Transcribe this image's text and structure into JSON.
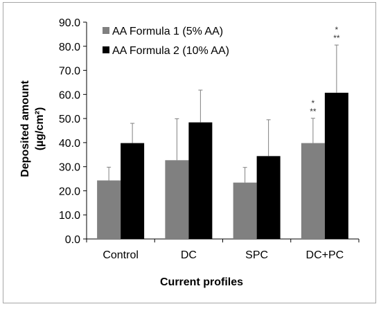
{
  "chart_data": {
    "type": "bar",
    "categories": [
      "Control",
      "DC",
      "SPC",
      "DC+PC"
    ],
    "series": [
      {
        "name": "AA Formula 1 (5% AA)",
        "color": "#808080",
        "values": [
          24.3,
          32.7,
          23.4,
          39.8
        ],
        "errors": [
          5.5,
          17.2,
          6.3,
          10.3
        ]
      },
      {
        "name": "AA Formula 2 (10% AA)",
        "color": "#000000",
        "values": [
          39.8,
          48.4,
          34.4,
          60.7
        ],
        "errors": [
          8.2,
          13.4,
          15.1,
          19.8
        ]
      }
    ],
    "annotations": [
      {
        "category": "DC+PC",
        "series": 0,
        "lines": [
          "*",
          "**"
        ]
      },
      {
        "category": "DC+PC",
        "series": 1,
        "lines": [
          "*",
          "**"
        ]
      }
    ],
    "xlabel": "Current profiles",
    "ylabel_line1": "Deposited amount",
    "ylabel_line2": "(µg/cm²)",
    "ylim": [
      0,
      90
    ],
    "yticks": [
      "0.0",
      "10.0",
      "20.0",
      "30.0",
      "40.0",
      "50.0",
      "60.0",
      "70.0",
      "80.0",
      "90.0"
    ],
    "legend_position": "top-left",
    "grid": false
  }
}
